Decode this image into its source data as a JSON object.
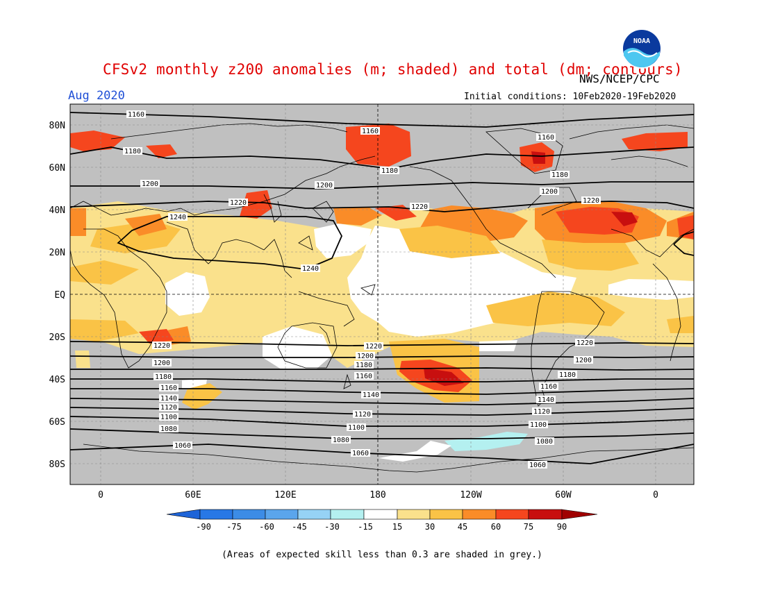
{
  "header": {
    "title": "CFSv2 monthly z200 anomalies (m; shaded) and total (dm; contours)",
    "agency": "NWS/NCEP/CPC",
    "month": "Aug 2020",
    "initial_conditions": "Initial conditions: 10Feb2020-19Feb2020",
    "logo_text": "NOAA"
  },
  "map": {
    "lat_labels": [
      "80N",
      "60N",
      "40N",
      "20N",
      "EQ",
      "20S",
      "40S",
      "60S",
      "80S"
    ],
    "lon_labels": [
      "0",
      "60E",
      "120E",
      "180",
      "120W",
      "60W",
      "0"
    ],
    "contour_labels": [
      "1060",
      "1080",
      "1100",
      "1120",
      "1140",
      "1160",
      "1180",
      "1200",
      "1220",
      "1240"
    ],
    "skill_mask_color": "#c0c0c0",
    "land_outline_color": "#000000"
  },
  "colorbar": {
    "ticks": [
      "-90",
      "-75",
      "-60",
      "-45",
      "-30",
      "-15",
      "15",
      "30",
      "45",
      "60",
      "75",
      "90"
    ],
    "colors": [
      "#1e64d8",
      "#2878e6",
      "#3c8ce6",
      "#5aa5ec",
      "#96d2f5",
      "#b4f0f0",
      "#ffffff",
      "#fae18c",
      "#fac346",
      "#fa8c28",
      "#f5461e",
      "#c80f0f",
      "#a00000"
    ]
  },
  "footnote": "(Areas of expected skill less than 0.3 are shaded in grey.)"
}
